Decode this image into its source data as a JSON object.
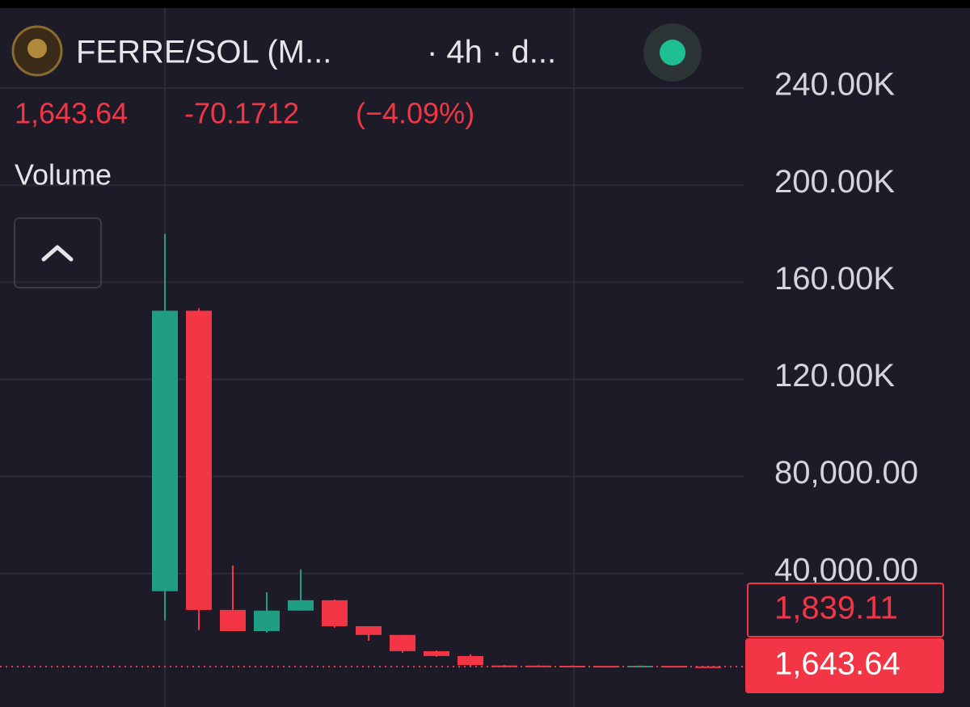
{
  "header": {
    "symbol": "FERRE/SOL (M...",
    "interval": "· 4h · d...",
    "last": "1,643.64",
    "change": "-70.1712",
    "change_pct": "(−4.09%)",
    "indicator": "Volume"
  },
  "chart_data": {
    "type": "candlestick",
    "open": [
      32700,
      148300,
      25000,
      16300,
      24700,
      29000,
      18300,
      14700,
      8000,
      6000,
      2100,
      2050,
      2000,
      1950,
      1800,
      1950,
      1713.81
    ],
    "high": [
      180000,
      149300,
      43300,
      32300,
      41700,
      29300,
      18300,
      14700,
      8300,
      6700,
      2300,
      2200,
      2100,
      2050,
      2100,
      2050,
      1850
    ],
    "low": [
      20700,
      16700,
      16300,
      15700,
      24700,
      17700,
      12300,
      7300,
      5700,
      1700,
      1650,
      1650,
      1600,
      1600,
      1750,
      1650,
      1600
    ],
    "close": [
      148300,
      25000,
      16300,
      24700,
      29000,
      18300,
      14700,
      8000,
      6000,
      2300,
      1750,
      1700,
      1700,
      1650,
      2000,
      1700,
      1643.64
    ],
    "up_color": "#1f9e84",
    "down_color": "#f23645",
    "ylim": [
      -15000,
      273000
    ],
    "yticks": [
      {
        "value": 40000,
        "label": "40,000.00"
      },
      {
        "value": 80000,
        "label": "80,000.00"
      },
      {
        "value": 120000,
        "label": "120.00K"
      },
      {
        "value": 160000,
        "label": "160.00K"
      },
      {
        "value": 200000,
        "label": "200.00K"
      },
      {
        "value": 240000,
        "label": "240.00K"
      }
    ],
    "grid": true,
    "price_markers": [
      {
        "value": 1839.11,
        "label": "1,839.11",
        "style": "outline"
      },
      {
        "value": 1643.64,
        "label": "1,643.64",
        "style": "filled"
      }
    ]
  }
}
